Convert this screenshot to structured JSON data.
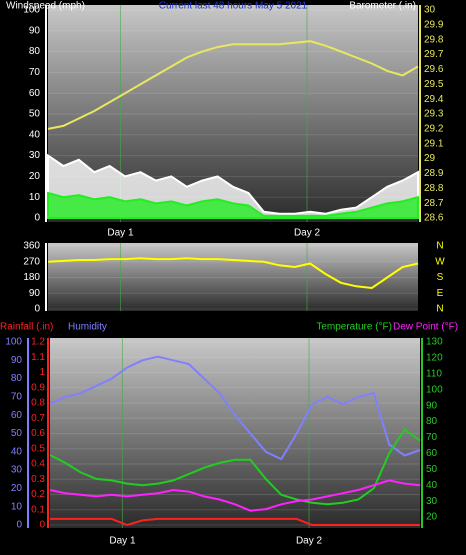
{
  "chart_data": [
    {
      "type": "line",
      "title": "Current last 48 hours May 5 2021",
      "y_label": "Windspeed (mph)",
      "y2_label": "Barometer (.in)",
      "x": [
        0,
        2,
        4,
        6,
        8,
        10,
        12,
        14,
        16,
        18,
        20,
        22,
        24,
        26,
        28,
        30,
        32,
        34,
        36,
        38,
        40,
        42,
        44,
        46,
        48
      ],
      "xlim": [
        0,
        48
      ],
      "xticks": [
        {
          "value": 9.4,
          "label": "Day 1"
        },
        {
          "value": 33.6,
          "label": "Day 2"
        }
      ],
      "ylim": [
        0,
        100
      ],
      "yticks": [
        0,
        10,
        20,
        30,
        40,
        50,
        60,
        70,
        80,
        90,
        100
      ],
      "y2lim": [
        28.6,
        30
      ],
      "y2ticks": [
        28.6,
        28.7,
        28.8,
        28.9,
        29,
        29.1,
        29.2,
        29.3,
        29.4,
        29.5,
        29.6,
        29.7,
        29.8,
        29.9,
        30
      ],
      "series": [
        {
          "color": "#ffffff",
          "fill": true,
          "values": [
            30,
            25,
            28,
            22,
            25,
            20,
            22,
            18,
            20,
            15,
            18,
            20,
            15,
            12,
            3,
            2,
            2,
            3,
            2,
            4,
            5,
            10,
            15,
            18,
            22
          ]
        },
        {
          "color": "#22ee22",
          "fill": true,
          "values": [
            12,
            10,
            11,
            9,
            10,
            8,
            9,
            7,
            8,
            6,
            8,
            9,
            7,
            6,
            1,
            1,
            1,
            1,
            1,
            2,
            3,
            5,
            7,
            8,
            10
          ]
        },
        {
          "color": "#e8e860",
          "axis": "y2",
          "values": [
            29.2,
            29.22,
            29.27,
            29.32,
            29.38,
            29.44,
            29.5,
            29.56,
            29.62,
            29.68,
            29.72,
            29.75,
            29.77,
            29.77,
            29.77,
            29.77,
            29.78,
            29.79,
            29.76,
            29.72,
            29.68,
            29.64,
            29.59,
            29.56,
            29.62
          ]
        }
      ]
    },
    {
      "type": "line",
      "x": [
        0,
        2,
        4,
        6,
        8,
        10,
        12,
        14,
        16,
        18,
        20,
        22,
        24,
        26,
        28,
        30,
        32,
        34,
        36,
        38,
        40,
        42,
        44,
        46,
        48
      ],
      "xlim": [
        0,
        48
      ],
      "xticks": [
        9.4,
        33.6
      ],
      "ylim": [
        0,
        360
      ],
      "yticks": [
        0,
        90,
        180,
        270,
        360
      ],
      "y2lim": [
        0,
        360
      ],
      "y2ticks": [
        {
          "value": 360,
          "label": "N"
        },
        {
          "value": 270,
          "label": "W"
        },
        {
          "value": 180,
          "label": "S"
        },
        {
          "value": 90,
          "label": "E"
        },
        {
          "value": 0,
          "label": "N"
        }
      ],
      "series": [
        {
          "color": "#ffff00",
          "values": [
            270,
            275,
            280,
            280,
            285,
            285,
            290,
            285,
            285,
            290,
            285,
            285,
            280,
            275,
            270,
            250,
            240,
            260,
            200,
            150,
            130,
            120,
            180,
            240,
            260
          ]
        }
      ]
    },
    {
      "type": "line",
      "x": [
        0,
        2,
        4,
        6,
        8,
        10,
        12,
        14,
        16,
        18,
        20,
        22,
        24,
        26,
        28,
        30,
        32,
        34,
        36,
        38,
        40,
        42,
        44,
        46,
        48
      ],
      "xlim": [
        0,
        48
      ],
      "xticks": [
        {
          "value": 9.4,
          "label": "Day 1"
        },
        {
          "value": 33.6,
          "label": "Day 2"
        }
      ],
      "ylim": [
        0,
        1.2
      ],
      "yticks": [
        0,
        0.1,
        0.2,
        0.3,
        0.4,
        0.5,
        0.6,
        0.7,
        0.8,
        0.9,
        1,
        1.1,
        1.2
      ],
      "y2lim": [
        15,
        130
      ],
      "y2ticks": [
        20,
        30,
        40,
        50,
        60,
        70,
        80,
        90,
        100,
        110,
        120,
        130
      ],
      "y3lim": [
        0,
        100
      ],
      "y3ticks": [
        0,
        10,
        20,
        30,
        40,
        50,
        60,
        70,
        80,
        90,
        100
      ],
      "series": [
        {
          "name": "Rainfall (.in)",
          "color": "#ff2020",
          "values": [
            0.04,
            0.04,
            0.04,
            0.04,
            0.04,
            0,
            0.03,
            0.04,
            0.04,
            0.04,
            0.04,
            0.04,
            0.04,
            0.04,
            0.04,
            0.04,
            0.04,
            0,
            0,
            0,
            0,
            0,
            0,
            0,
            0
          ]
        },
        {
          "name": "Humidity",
          "color": "#8080ff",
          "axis": "y3",
          "values": [
            66,
            70,
            72,
            76,
            80,
            86,
            90,
            92,
            90,
            88,
            80,
            72,
            60,
            50,
            40,
            36,
            50,
            66,
            70,
            66,
            70,
            72,
            44,
            38,
            41
          ]
        },
        {
          "name": "Temperature (°F)",
          "color": "#22cc22",
          "axis": "y2",
          "values": [
            59,
            54,
            48,
            44,
            43,
            41,
            40,
            41,
            43,
            47,
            51,
            54,
            56,
            56,
            44,
            34,
            31,
            29,
            28,
            29,
            31,
            38,
            60,
            75,
            68
          ]
        },
        {
          "name": "Dew Point (°F)",
          "color": "#ff22ff",
          "axis": "y2",
          "values": [
            37,
            35,
            34,
            33,
            34,
            33,
            34,
            35,
            37,
            36,
            33,
            31,
            28,
            24,
            25,
            28,
            30,
            31,
            33,
            35,
            37,
            40,
            43,
            41,
            40
          ]
        }
      ]
    }
  ]
}
